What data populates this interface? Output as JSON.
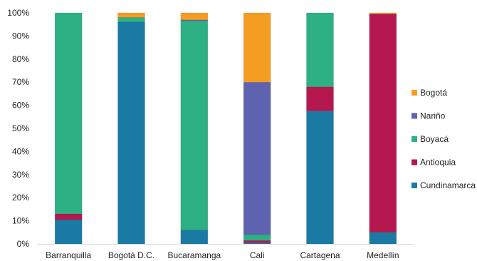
{
  "chart_data": {
    "type": "bar",
    "stacked": "percent",
    "categories": [
      "Barranquilla",
      "Bogotá D.C.",
      "Bucaramanga",
      "Cali",
      "Cartagena",
      "Medellín"
    ],
    "series": [
      {
        "name": "Cundinamarca",
        "color": "#1a7aa3",
        "values": [
          10.5,
          96,
          6,
          0.5,
          57.5,
          5
        ]
      },
      {
        "name": "Antioquia",
        "color": "#b5174f",
        "values": [
          2.5,
          0,
          0,
          1,
          10.5,
          94.5
        ]
      },
      {
        "name": "Boyacá",
        "color": "#2db083",
        "values": [
          87,
          2,
          90.5,
          2.5,
          32,
          0
        ]
      },
      {
        "name": "Nariño",
        "color": "#5e63b0",
        "values": [
          0,
          0,
          0.5,
          66,
          0,
          0
        ]
      },
      {
        "name": "Bogotá",
        "color": "#f59d23",
        "values": [
          0,
          2,
          3,
          30,
          0,
          0.5
        ]
      }
    ],
    "yticks": [
      "0%",
      "10%",
      "20%",
      "30%",
      "40%",
      "50%",
      "60%",
      "70%",
      "80%",
      "90%",
      "100%"
    ],
    "ylim": [
      0,
      100
    ],
    "legend_position": "right",
    "legend_order": [
      "Bogotá",
      "Nariño",
      "Boyacá",
      "Antioquia",
      "Cundinamarca"
    ],
    "grid": false
  }
}
